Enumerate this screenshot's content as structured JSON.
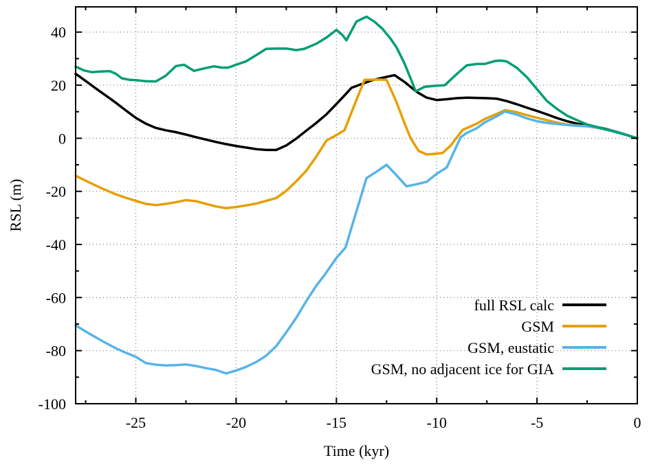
{
  "chart_data": {
    "type": "line",
    "title": "",
    "xlabel": "Time (kyr)",
    "ylabel": "RSL (m)",
    "xlim": [
      -28,
      0
    ],
    "ylim": [
      -100,
      49.5
    ],
    "grid": true,
    "grid_color": "#777777",
    "legend_position": "bottom-right-inside",
    "x_major_ticks": [
      -25,
      -20,
      -15,
      -10,
      -5,
      0
    ],
    "x_tick_labels": [
      "-25",
      "-20",
      "-15",
      "-10",
      "-5",
      "0"
    ],
    "x_minor_ticks": [
      -27.5,
      -22.5,
      -17.5,
      -12.5,
      -7.5,
      -2.5
    ],
    "y_major_ticks": [
      40,
      20,
      0,
      -20,
      -40,
      -60,
      -80,
      -100
    ],
    "y_tick_labels": [
      "40",
      "20",
      "0",
      "-20",
      "-40",
      "-60",
      "-80",
      "-100"
    ],
    "y_minor_ticks": [
      30,
      10,
      -10,
      -30,
      -50,
      -70,
      -90
    ],
    "series": [
      {
        "name": "full RSL calc",
        "color": "#000000",
        "points": [
          [
            -28,
            24.3
          ],
          [
            -27.5,
            21.6
          ],
          [
            -27,
            18.8
          ],
          [
            -26.5,
            16.1
          ],
          [
            -26,
            13.4
          ],
          [
            -25.5,
            10.5
          ],
          [
            -25,
            7.7
          ],
          [
            -24.5,
            5.5
          ],
          [
            -24,
            3.9
          ],
          [
            -23.5,
            3.0
          ],
          [
            -23,
            2.3
          ],
          [
            -22.5,
            1.4
          ],
          [
            -22,
            0.4
          ],
          [
            -21.5,
            -0.5
          ],
          [
            -21,
            -1.4
          ],
          [
            -20.5,
            -2.2
          ],
          [
            -20,
            -2.9
          ],
          [
            -19.5,
            -3.5
          ],
          [
            -19,
            -4.1
          ],
          [
            -18.5,
            -4.4
          ],
          [
            -18,
            -4.4
          ],
          [
            -17.5,
            -2.7
          ],
          [
            -17,
            -0.1
          ],
          [
            -16.5,
            2.9
          ],
          [
            -16,
            5.8
          ],
          [
            -15.5,
            9.0
          ],
          [
            -15,
            12.9
          ],
          [
            -14.5,
            16.9
          ],
          [
            -14.25,
            19.0
          ],
          [
            -13.75,
            20.4
          ],
          [
            -13.25,
            21.8
          ],
          [
            -12.75,
            22.7
          ],
          [
            -12.1,
            23.8
          ],
          [
            -11.6,
            21.2
          ],
          [
            -11,
            17.5
          ],
          [
            -10.5,
            15.3
          ],
          [
            -10,
            14.4
          ],
          [
            -9.5,
            14.7
          ],
          [
            -9,
            15.1
          ],
          [
            -8.5,
            15.3
          ],
          [
            -8,
            15.2
          ],
          [
            -7.5,
            15.1
          ],
          [
            -7,
            14.9
          ],
          [
            -6.5,
            14.0
          ],
          [
            -6,
            12.8
          ],
          [
            -5.5,
            11.5
          ],
          [
            -5,
            10.3
          ],
          [
            -4.5,
            9.0
          ],
          [
            -4,
            7.6
          ],
          [
            -3.5,
            6.4
          ],
          [
            -3,
            5.5
          ],
          [
            -2.5,
            4.9
          ],
          [
            -2,
            4.2
          ],
          [
            -1.5,
            3.4
          ],
          [
            -1,
            2.4
          ],
          [
            -0.5,
            1.2
          ],
          [
            0,
            0
          ]
        ]
      },
      {
        "name": "GSM",
        "color": "#E69F00",
        "points": [
          [
            -28,
            -14.1
          ],
          [
            -27.5,
            -16.0
          ],
          [
            -27,
            -17.8
          ],
          [
            -26.5,
            -19.5
          ],
          [
            -26,
            -21.1
          ],
          [
            -25.5,
            -22.4
          ],
          [
            -25,
            -23.6
          ],
          [
            -24.5,
            -24.7
          ],
          [
            -24,
            -25.2
          ],
          [
            -23.5,
            -24.7
          ],
          [
            -23,
            -24.1
          ],
          [
            -22.5,
            -23.3
          ],
          [
            -22,
            -23.7
          ],
          [
            -21.5,
            -24.7
          ],
          [
            -21,
            -25.7
          ],
          [
            -20.5,
            -26.3
          ],
          [
            -20,
            -25.9
          ],
          [
            -19.5,
            -25.3
          ],
          [
            -19,
            -24.6
          ],
          [
            -18.5,
            -23.6
          ],
          [
            -18,
            -22.5
          ],
          [
            -17.5,
            -19.8
          ],
          [
            -17,
            -16.2
          ],
          [
            -16.5,
            -12.2
          ],
          [
            -16,
            -6.9
          ],
          [
            -15.5,
            -0.9
          ],
          [
            -15,
            1.2
          ],
          [
            -14.6,
            3.0
          ],
          [
            -14,
            14.5
          ],
          [
            -13.6,
            22.0
          ],
          [
            -13,
            22.1
          ],
          [
            -12.5,
            22.0
          ],
          [
            -12,
            13.5
          ],
          [
            -11.6,
            5.6
          ],
          [
            -11.3,
            0.0
          ],
          [
            -10.9,
            -4.8
          ],
          [
            -10.5,
            -6.1
          ],
          [
            -10,
            -5.8
          ],
          [
            -9.7,
            -5.5
          ],
          [
            -9.3,
            -2.7
          ],
          [
            -8.7,
            3.2
          ],
          [
            -8,
            5.5
          ],
          [
            -7.6,
            7.3
          ],
          [
            -7,
            9.2
          ],
          [
            -6.6,
            10.6
          ],
          [
            -6,
            9.8
          ],
          [
            -5.5,
            8.7
          ],
          [
            -5,
            7.7
          ],
          [
            -4.5,
            6.8
          ],
          [
            -4,
            5.9
          ],
          [
            -3.5,
            5.2
          ],
          [
            -3,
            4.8
          ],
          [
            -2.5,
            4.6
          ],
          [
            -2,
            3.9
          ],
          [
            -1.5,
            3.2
          ],
          [
            -1,
            2.3
          ],
          [
            -0.5,
            1.2
          ],
          [
            0,
            0
          ]
        ]
      },
      {
        "name": "GSM, eustatic",
        "color": "#56B4E9",
        "points": [
          [
            -28,
            -70.5
          ],
          [
            -27.5,
            -72.8
          ],
          [
            -27,
            -75.0
          ],
          [
            -26.5,
            -77.1
          ],
          [
            -26,
            -79.1
          ],
          [
            -25.5,
            -80.8
          ],
          [
            -25,
            -82.3
          ],
          [
            -24.5,
            -84.7
          ],
          [
            -24,
            -85.3
          ],
          [
            -23.5,
            -85.6
          ],
          [
            -23,
            -85.5
          ],
          [
            -22.5,
            -85.2
          ],
          [
            -22,
            -85.8
          ],
          [
            -21.5,
            -86.6
          ],
          [
            -21,
            -87.3
          ],
          [
            -20.5,
            -88.6
          ],
          [
            -20,
            -87.5
          ],
          [
            -19.5,
            -86.1
          ],
          [
            -19,
            -84.3
          ],
          [
            -18.5,
            -81.9
          ],
          [
            -18,
            -78.3
          ],
          [
            -17.5,
            -73.1
          ],
          [
            -17,
            -67.6
          ],
          [
            -16.5,
            -61.3
          ],
          [
            -16,
            -55.5
          ],
          [
            -15.6,
            -51.6
          ],
          [
            -15,
            -45.1
          ],
          [
            -14.55,
            -41.2
          ],
          [
            -14,
            -27.5
          ],
          [
            -13.5,
            -15.0
          ],
          [
            -13,
            -12.6
          ],
          [
            -12.5,
            -10.0
          ],
          [
            -12,
            -14.0
          ],
          [
            -11.5,
            -18.1
          ],
          [
            -11,
            -17.3
          ],
          [
            -10.5,
            -16.4
          ],
          [
            -10,
            -13.4
          ],
          [
            -9.5,
            -11.0
          ],
          [
            -9,
            -2.8
          ],
          [
            -8.8,
            0.4
          ],
          [
            -8.5,
            2.0
          ],
          [
            -8,
            3.8
          ],
          [
            -7.6,
            6.0
          ],
          [
            -7,
            8.3
          ],
          [
            -6.6,
            10.1
          ],
          [
            -6,
            8.9
          ],
          [
            -5.5,
            7.5
          ],
          [
            -5,
            6.4
          ],
          [
            -4.5,
            5.8
          ],
          [
            -4,
            5.4
          ],
          [
            -3.5,
            5.0
          ],
          [
            -3,
            4.7
          ],
          [
            -2.5,
            4.5
          ],
          [
            -2,
            4.0
          ],
          [
            -1.5,
            3.3
          ],
          [
            -1,
            2.4
          ],
          [
            -0.5,
            1.2
          ],
          [
            0,
            0
          ]
        ]
      },
      {
        "name": "GSM, no adjacent ice for GIA",
        "color": "#009E73",
        "points": [
          [
            -28,
            27.0
          ],
          [
            -27.6,
            25.6
          ],
          [
            -27.2,
            24.9
          ],
          [
            -26.8,
            25.1
          ],
          [
            -26.3,
            25.3
          ],
          [
            -26,
            24.3
          ],
          [
            -25.7,
            22.6
          ],
          [
            -25.3,
            22.0
          ],
          [
            -25,
            21.9
          ],
          [
            -24.5,
            21.5
          ],
          [
            -24,
            21.4
          ],
          [
            -23.5,
            23.6
          ],
          [
            -23,
            27.2
          ],
          [
            -22.6,
            27.7
          ],
          [
            -22.1,
            25.4
          ],
          [
            -21.6,
            26.3
          ],
          [
            -21.1,
            27.1
          ],
          [
            -20.7,
            26.6
          ],
          [
            -20.4,
            26.6
          ],
          [
            -20,
            27.7
          ],
          [
            -19.5,
            29.0
          ],
          [
            -19,
            31.3
          ],
          [
            -18.5,
            33.7
          ],
          [
            -18,
            33.8
          ],
          [
            -17.5,
            33.8
          ],
          [
            -17,
            33.2
          ],
          [
            -16.6,
            33.7
          ],
          [
            -16,
            35.6
          ],
          [
            -15.5,
            37.9
          ],
          [
            -15,
            40.8
          ],
          [
            -14.7,
            38.9
          ],
          [
            -14.5,
            36.9
          ],
          [
            -14,
            44.0
          ],
          [
            -13.5,
            45.8
          ],
          [
            -13.1,
            43.9
          ],
          [
            -12.7,
            41.2
          ],
          [
            -12.3,
            37.5
          ],
          [
            -12,
            34.2
          ],
          [
            -11.6,
            28.1
          ],
          [
            -11.3,
            22.5
          ],
          [
            -11.05,
            17.7
          ],
          [
            -10.6,
            19.4
          ],
          [
            -10,
            19.8
          ],
          [
            -9.6,
            20.0
          ],
          [
            -9,
            24.2
          ],
          [
            -8.5,
            27.5
          ],
          [
            -8,
            28.0
          ],
          [
            -7.6,
            28.0
          ],
          [
            -7.1,
            29.1
          ],
          [
            -6.8,
            29.3
          ],
          [
            -6.5,
            28.9
          ],
          [
            -6,
            26.5
          ],
          [
            -5.5,
            23.0
          ],
          [
            -5,
            18.5
          ],
          [
            -4.5,
            14.0
          ],
          [
            -4,
            11.0
          ],
          [
            -3.5,
            8.5
          ],
          [
            -3,
            6.8
          ],
          [
            -2.5,
            5.2
          ],
          [
            -2,
            4.2
          ],
          [
            -1.5,
            3.2
          ],
          [
            -1,
            2.2
          ],
          [
            -0.5,
            1.1
          ],
          [
            0,
            0
          ]
        ]
      }
    ]
  }
}
